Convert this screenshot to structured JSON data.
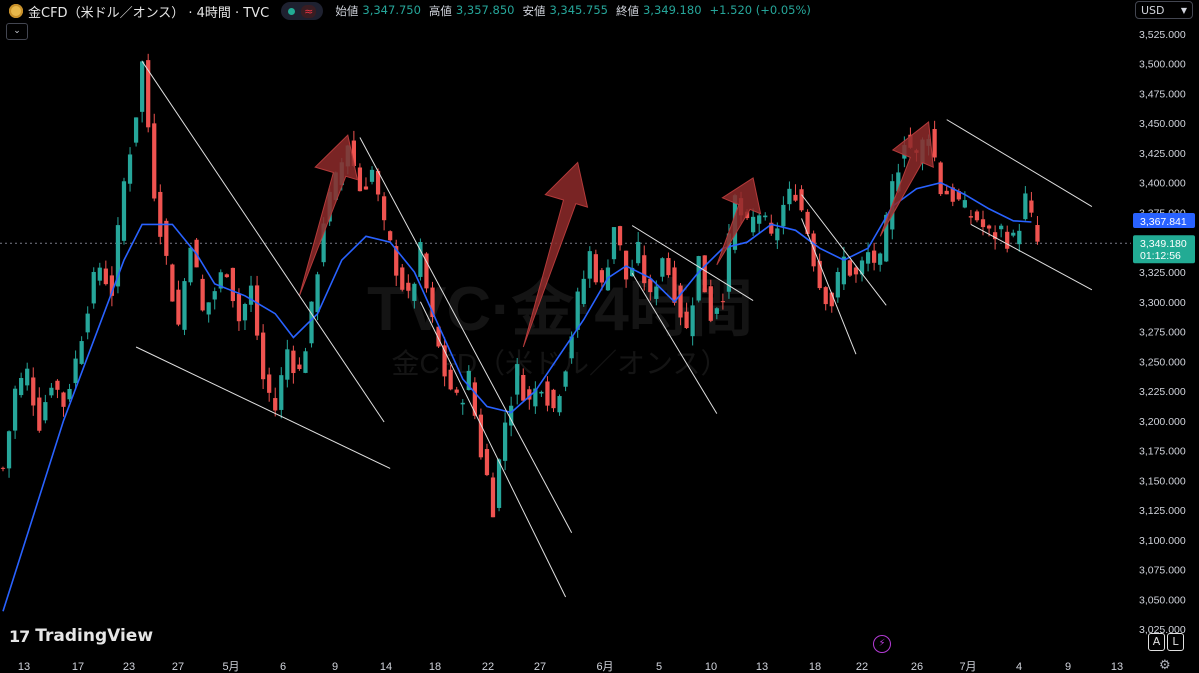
{
  "header": {
    "title": "金CFD（米ドル／オンス）",
    "interval": "· 4時間 · TVC",
    "status_symbol": "≈",
    "ohlc": [
      {
        "label": "始値",
        "value": "3,347.750"
      },
      {
        "label": "高値",
        "value": "3,357.850"
      },
      {
        "label": "安値",
        "value": "3,345.755"
      },
      {
        "label": "終値",
        "value": "3,349.180"
      }
    ],
    "change": "+1.520 (+0.05%)"
  },
  "currency": "USD",
  "logo_text": "TradingView",
  "watermark": {
    "line1": "TVC·金·4時間",
    "line2": "金CFD（米ドル／オンス）"
  },
  "scale_buttons": [
    "A",
    "L"
  ],
  "colors": {
    "up": "#26a69a",
    "down": "#ef5350",
    "ma": "#2962ff",
    "annotation_arrow": "#8e2a2a",
    "trendline": "#e0e0e0",
    "background": "#000000"
  },
  "chart_data": {
    "type": "candlestick",
    "title": "金CFD（米ドル／オンス）",
    "timeframe": "4時間",
    "source": "TVC",
    "ylim": [
      3010,
      3535
    ],
    "y_ticks": [
      3025,
      3050,
      3075,
      3100,
      3125,
      3150,
      3175,
      3200,
      3225,
      3250,
      3275,
      3300,
      3325,
      3350,
      3375,
      3400,
      3425,
      3450,
      3475,
      3500,
      3525
    ],
    "y_tick_labels": [
      "3,025.000",
      "3,050.000",
      "3,075.000",
      "3,100.000",
      "3,125.000",
      "3,150.000",
      "3,175.000",
      "3,200.000",
      "3,225.000",
      "3,250.000",
      "3,275.000",
      "3,300.000",
      "3,325.000",
      "3,350.000",
      "3,375.000",
      "3,400.000",
      "3,425.000",
      "3,450.000",
      "3,475.000",
      "3,500.000",
      "3,525.000"
    ],
    "x_tick_labels": [
      "13",
      "17",
      "23",
      "27",
      "5月",
      "6",
      "9",
      "14",
      "18",
      "22",
      "27",
      "6月",
      "5",
      "10",
      "13",
      "18",
      "22",
      "26",
      "7月",
      "4",
      "9",
      "13"
    ],
    "price_path": [
      [
        0,
        3160
      ],
      [
        2,
        3225
      ],
      [
        4,
        3240
      ],
      [
        6,
        3200
      ],
      [
        8,
        3235
      ],
      [
        10,
        3215
      ],
      [
        12,
        3250
      ],
      [
        14,
        3300
      ],
      [
        16,
        3330
      ],
      [
        18,
        3310
      ],
      [
        20,
        3400
      ],
      [
        22,
        3460
      ],
      [
        23,
        3500
      ],
      [
        25,
        3395
      ],
      [
        27,
        3335
      ],
      [
        29,
        3280
      ],
      [
        31,
        3355
      ],
      [
        33,
        3290
      ],
      [
        35,
        3310
      ],
      [
        37,
        3330
      ],
      [
        39,
        3285
      ],
      [
        41,
        3310
      ],
      [
        43,
        3235
      ],
      [
        45,
        3210
      ],
      [
        47,
        3260
      ],
      [
        49,
        3240
      ],
      [
        51,
        3290
      ],
      [
        53,
        3370
      ],
      [
        55,
        3400
      ],
      [
        57,
        3435
      ],
      [
        59,
        3395
      ],
      [
        61,
        3410
      ],
      [
        63,
        3360
      ],
      [
        65,
        3330
      ],
      [
        67,
        3300
      ],
      [
        69,
        3340
      ],
      [
        71,
        3280
      ],
      [
        73,
        3240
      ],
      [
        75,
        3215
      ],
      [
        77,
        3235
      ],
      [
        79,
        3175
      ],
      [
        81,
        3130
      ],
      [
        83,
        3200
      ],
      [
        85,
        3240
      ],
      [
        87,
        3215
      ],
      [
        89,
        3235
      ],
      [
        91,
        3210
      ],
      [
        93,
        3250
      ],
      [
        95,
        3300
      ],
      [
        97,
        3340
      ],
      [
        99,
        3310
      ],
      [
        101,
        3365
      ],
      [
        103,
        3320
      ],
      [
        105,
        3340
      ],
      [
        107,
        3300
      ],
      [
        109,
        3340
      ],
      [
        111,
        3310
      ],
      [
        113,
        3275
      ],
      [
        115,
        3335
      ],
      [
        117,
        3290
      ],
      [
        119,
        3310
      ],
      [
        121,
        3385
      ],
      [
        123,
        3360
      ],
      [
        125,
        3375
      ],
      [
        127,
        3350
      ],
      [
        129,
        3380
      ],
      [
        131,
        3395
      ],
      [
        133,
        3360
      ],
      [
        135,
        3315
      ],
      [
        137,
        3300
      ],
      [
        139,
        3335
      ],
      [
        141,
        3320
      ],
      [
        143,
        3340
      ],
      [
        145,
        3330
      ],
      [
        147,
        3395
      ],
      [
        149,
        3440
      ],
      [
        151,
        3420
      ],
      [
        153,
        3445
      ],
      [
        155,
        3395
      ],
      [
        157,
        3390
      ],
      [
        159,
        3375
      ],
      [
        161,
        3370
      ],
      [
        163,
        3355
      ],
      [
        165,
        3360
      ],
      [
        167,
        3350
      ],
      [
        169,
        3385
      ],
      [
        171,
        3349
      ]
    ],
    "moving_average": [
      [
        0,
        3040
      ],
      [
        10,
        3200
      ],
      [
        20,
        3335
      ],
      [
        23,
        3365
      ],
      [
        28,
        3365
      ],
      [
        32,
        3340
      ],
      [
        35,
        3315
      ],
      [
        40,
        3305
      ],
      [
        45,
        3290
      ],
      [
        48,
        3270
      ],
      [
        52,
        3290
      ],
      [
        56,
        3335
      ],
      [
        60,
        3355
      ],
      [
        64,
        3350
      ],
      [
        68,
        3325
      ],
      [
        72,
        3280
      ],
      [
        76,
        3235
      ],
      [
        80,
        3212
      ],
      [
        84,
        3207
      ],
      [
        88,
        3225
      ],
      [
        92,
        3255
      ],
      [
        96,
        3285
      ],
      [
        100,
        3320
      ],
      [
        103,
        3330
      ],
      [
        107,
        3320
      ],
      [
        111,
        3300
      ],
      [
        115,
        3325
      ],
      [
        119,
        3345
      ],
      [
        123,
        3350
      ],
      [
        127,
        3365
      ],
      [
        131,
        3360
      ],
      [
        135,
        3345
      ],
      [
        139,
        3335
      ],
      [
        143,
        3345
      ],
      [
        147,
        3380
      ],
      [
        151,
        3395
      ],
      [
        155,
        3400
      ],
      [
        159,
        3390
      ],
      [
        163,
        3378
      ],
      [
        167,
        3368
      ],
      [
        170,
        3367
      ]
    ],
    "last_price": {
      "value": 3349.18,
      "label": "3,349.180",
      "countdown": "01:12:56"
    },
    "ma_last": {
      "value": 3367.841,
      "label": "3,367.841"
    },
    "trendlines": [
      [
        [
          23,
          3502
        ],
        [
          63,
          3199
        ]
      ],
      [
        [
          22,
          3262
        ],
        [
          64,
          3160
        ]
      ],
      [
        [
          59,
          3438
        ],
        [
          94,
          3106
        ]
      ],
      [
        [
          69,
          3300
        ],
        [
          93,
          3052
        ]
      ],
      [
        [
          104,
          3364
        ],
        [
          124,
          3301
        ]
      ],
      [
        [
          104,
          3324
        ],
        [
          118,
          3206
        ]
      ],
      [
        [
          132,
          3390
        ],
        [
          146,
          3297
        ]
      ],
      [
        [
          132,
          3370
        ],
        [
          141,
          3256
        ]
      ],
      [
        [
          156,
          3453
        ],
        [
          180,
          3380
        ]
      ],
      [
        [
          160,
          3365
        ],
        [
          180,
          3310
        ]
      ]
    ],
    "arrows": [
      [
        [
          49,
          3305
        ],
        [
          57,
          3440
        ]
      ],
      [
        [
          86,
          3262
        ],
        [
          95,
          3417
        ]
      ],
      [
        [
          118,
          3331
        ],
        [
          124,
          3404
        ]
      ],
      [
        [
          145,
          3355
        ],
        [
          153,
          3451
        ]
      ]
    ]
  }
}
